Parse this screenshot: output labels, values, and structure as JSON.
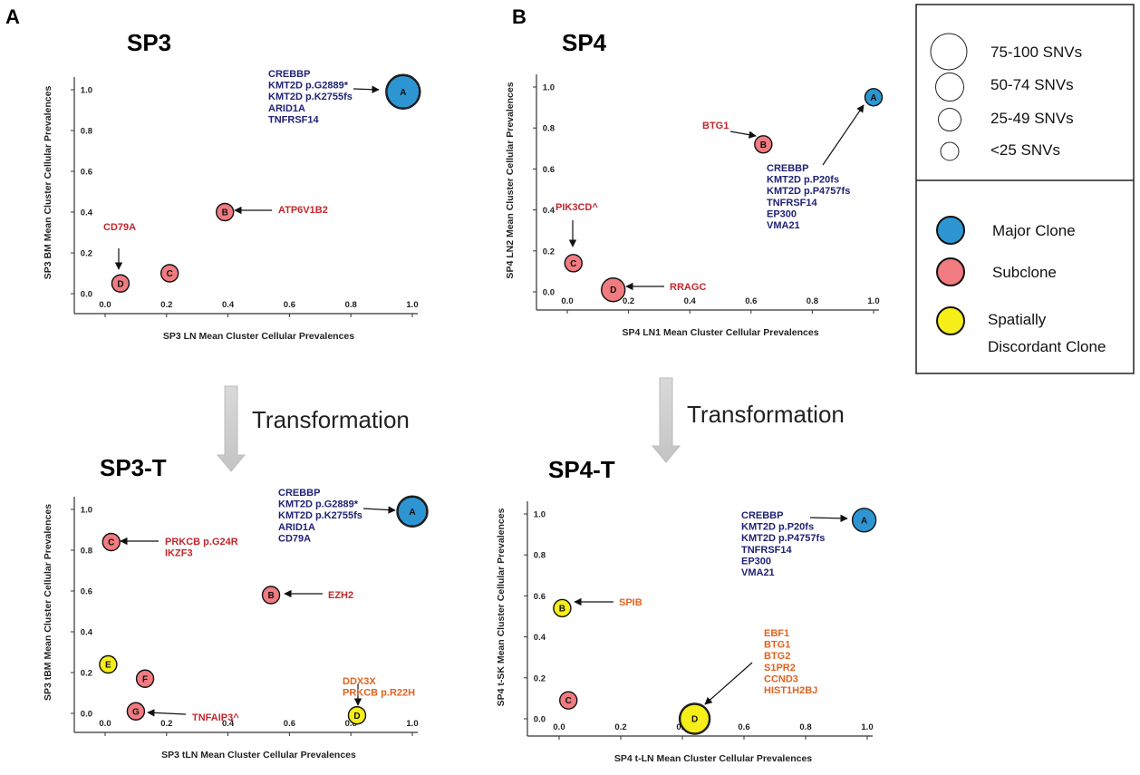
{
  "panels": {
    "A": "A",
    "B": "B"
  },
  "transformation_label": "Transformation",
  "colors": {
    "major": "#2e95d3",
    "subclone": "#f07b80",
    "discordant": "#f5ee18",
    "navy_text": "#1f2275",
    "red_text": "#c2272d",
    "orange_text": "#e06320"
  },
  "legend": {
    "sizes": [
      {
        "label": "75-100 SNVs"
      },
      {
        "label": "50-74 SNVs"
      },
      {
        "label": "25-49 SNVs"
      },
      {
        "label": "<25 SNVs"
      }
    ],
    "clone_types": [
      {
        "label": "Major Clone",
        "color": "#2e95d3"
      },
      {
        "label": "Subclone",
        "color": "#f07b80"
      },
      {
        "label": "Spatially Discordant Clone",
        "color": "#f5ee18"
      }
    ]
  },
  "chart_data": [
    {
      "type": "scatter",
      "title": "SP3",
      "xlabel": "SP3 LN Mean Cluster Cellular Prevalences",
      "ylabel": "SP3 BM Mean Cluster Cellular Prevalences",
      "xlim": [
        0,
        1
      ],
      "ylim": [
        0,
        1
      ],
      "xticks": [
        "0.0",
        "0.2",
        "0.4",
        "0.6",
        "0.8",
        "1.0"
      ],
      "yticks": [
        "0.0",
        "0.2",
        "0.4",
        "0.6",
        "0.8",
        "1.0"
      ],
      "points": [
        {
          "id": "A",
          "x": 0.97,
          "y": 0.99,
          "clone": "major",
          "size_class": "75-100"
        },
        {
          "id": "B",
          "x": 0.39,
          "y": 0.4,
          "clone": "subclone",
          "size_class": "<25"
        },
        {
          "id": "C",
          "x": 0.21,
          "y": 0.1,
          "clone": "subclone",
          "size_class": "<25"
        },
        {
          "id": "D",
          "x": 0.05,
          "y": 0.05,
          "clone": "subclone",
          "size_class": "<25"
        }
      ],
      "annotations": [
        {
          "target": "A",
          "color": "navy",
          "lines": [
            "CREBBP",
            "KMT2D p.G2889*",
            "KMT2D p.K2755fs",
            "ARID1A",
            "TNFRSF14"
          ]
        },
        {
          "target": "B",
          "color": "red",
          "lines": [
            "ATP6V1B2"
          ]
        },
        {
          "target": "D",
          "color": "red",
          "lines": [
            "CD79A"
          ]
        }
      ]
    },
    {
      "type": "scatter",
      "title": "SP4",
      "xlabel": "SP4 LN1 Mean Cluster Cellular Prevalences",
      "ylabel": "SP4 LN2 Mean Cluster Cellular Prevalences",
      "xlim": [
        0,
        1
      ],
      "ylim": [
        0,
        1
      ],
      "xticks": [
        "0.0",
        "0.2",
        "0.4",
        "0.6",
        "0.8",
        "1.0"
      ],
      "yticks": [
        "0.0",
        "0.2",
        "0.4",
        "0.6",
        "0.8",
        "1.0"
      ],
      "points": [
        {
          "id": "A",
          "x": 1.0,
          "y": 0.95,
          "clone": "major",
          "size_class": "<25"
        },
        {
          "id": "B",
          "x": 0.64,
          "y": 0.72,
          "clone": "subclone",
          "size_class": "<25"
        },
        {
          "id": "C",
          "x": 0.02,
          "y": 0.14,
          "clone": "subclone",
          "size_class": "<25"
        },
        {
          "id": "D",
          "x": 0.15,
          "y": 0.01,
          "clone": "subclone",
          "size_class": "25-49"
        }
      ],
      "annotations": [
        {
          "target": "A",
          "color": "navy",
          "lines": [
            "CREBBP",
            "KMT2D p.P20fs",
            "KMT2D p.P4757fs",
            "TNFRSF14",
            "EP300",
            "VMA21"
          ]
        },
        {
          "target": "B",
          "color": "red",
          "lines": [
            "BTG1"
          ]
        },
        {
          "target": "C",
          "color": "red",
          "lines": [
            "PIK3CD^"
          ]
        },
        {
          "target": "D",
          "color": "red",
          "lines": [
            "RRAGC"
          ]
        }
      ]
    },
    {
      "type": "scatter",
      "title": "SP3-T",
      "xlabel": "SP3 tLN Mean Cluster Cellular Prevalences",
      "ylabel": "SP3 tBM Mean Cluster Cellular Prevalences",
      "xlim": [
        0,
        1
      ],
      "ylim": [
        0,
        1
      ],
      "xticks": [
        "0.0",
        "0.2",
        "0.4",
        "0.6",
        "0.8",
        "1.0"
      ],
      "yticks": [
        "0.0",
        "0.2",
        "0.4",
        "0.6",
        "0.8",
        "1.0"
      ],
      "points": [
        {
          "id": "A",
          "x": 1.0,
          "y": 0.99,
          "clone": "major",
          "size_class": "50-74"
        },
        {
          "id": "B",
          "x": 0.54,
          "y": 0.58,
          "clone": "subclone",
          "size_class": "<25"
        },
        {
          "id": "C",
          "x": 0.02,
          "y": 0.84,
          "clone": "subclone",
          "size_class": "<25"
        },
        {
          "id": "D",
          "x": 0.82,
          "y": -0.01,
          "clone": "discordant",
          "size_class": "<25"
        },
        {
          "id": "E",
          "x": 0.01,
          "y": 0.24,
          "clone": "discordant",
          "size_class": "<25"
        },
        {
          "id": "F",
          "x": 0.13,
          "y": 0.17,
          "clone": "subclone",
          "size_class": "<25"
        },
        {
          "id": "G",
          "x": 0.1,
          "y": 0.01,
          "clone": "subclone",
          "size_class": "<25"
        }
      ],
      "annotations": [
        {
          "target": "A",
          "color": "navy",
          "lines": [
            "CREBBP",
            "KMT2D p.G2889*",
            "KMT2D p.K2755fs",
            "ARID1A",
            "CD79A"
          ]
        },
        {
          "target": "B",
          "color": "red",
          "lines": [
            "EZH2"
          ]
        },
        {
          "target": "C",
          "color": "red",
          "lines": [
            "PRKCB p.G24R",
            "IKZF3"
          ]
        },
        {
          "target": "D",
          "color": "orange",
          "lines": [
            "DDX3X",
            "PRKCB p.R22H"
          ]
        },
        {
          "target": "G",
          "color": "red",
          "lines": [
            "TNFAIP3^"
          ]
        }
      ]
    },
    {
      "type": "scatter",
      "title": "SP4-T",
      "xlabel": "SP4 t-LN Mean Cluster Cellular Prevalences",
      "ylabel": "SP4 t-SK Mean Cluster Cellular Prevalences",
      "xlim": [
        0,
        1
      ],
      "ylim": [
        0,
        1
      ],
      "xticks": [
        "0.0",
        "0.2",
        "0.4",
        "0.6",
        "0.8",
        "1.0"
      ],
      "yticks": [
        "0.0",
        "0.2",
        "0.4",
        "0.6",
        "0.8",
        "1.0"
      ],
      "points": [
        {
          "id": "A",
          "x": 0.99,
          "y": 0.97,
          "clone": "major",
          "size_class": "25-49"
        },
        {
          "id": "B",
          "x": 0.01,
          "y": 0.54,
          "clone": "discordant",
          "size_class": "<25"
        },
        {
          "id": "C",
          "x": 0.03,
          "y": 0.09,
          "clone": "subclone",
          "size_class": "<25"
        },
        {
          "id": "D",
          "x": 0.44,
          "y": 0.0,
          "clone": "discordant",
          "size_class": "50-74"
        }
      ],
      "annotations": [
        {
          "target": "A",
          "color": "navy",
          "lines": [
            "CREBBP",
            "KMT2D p.P20fs",
            "KMT2D p.P4757fs",
            "TNFRSF14",
            "EP300",
            "VMA21"
          ]
        },
        {
          "target": "B",
          "color": "orange",
          "lines": [
            "SPIB"
          ]
        },
        {
          "target": "D",
          "color": "orange",
          "lines": [
            "EBF1",
            "BTG1",
            "BTG2",
            "S1PR2",
            "CCND3",
            "HIST1H2BJ"
          ]
        }
      ]
    }
  ]
}
